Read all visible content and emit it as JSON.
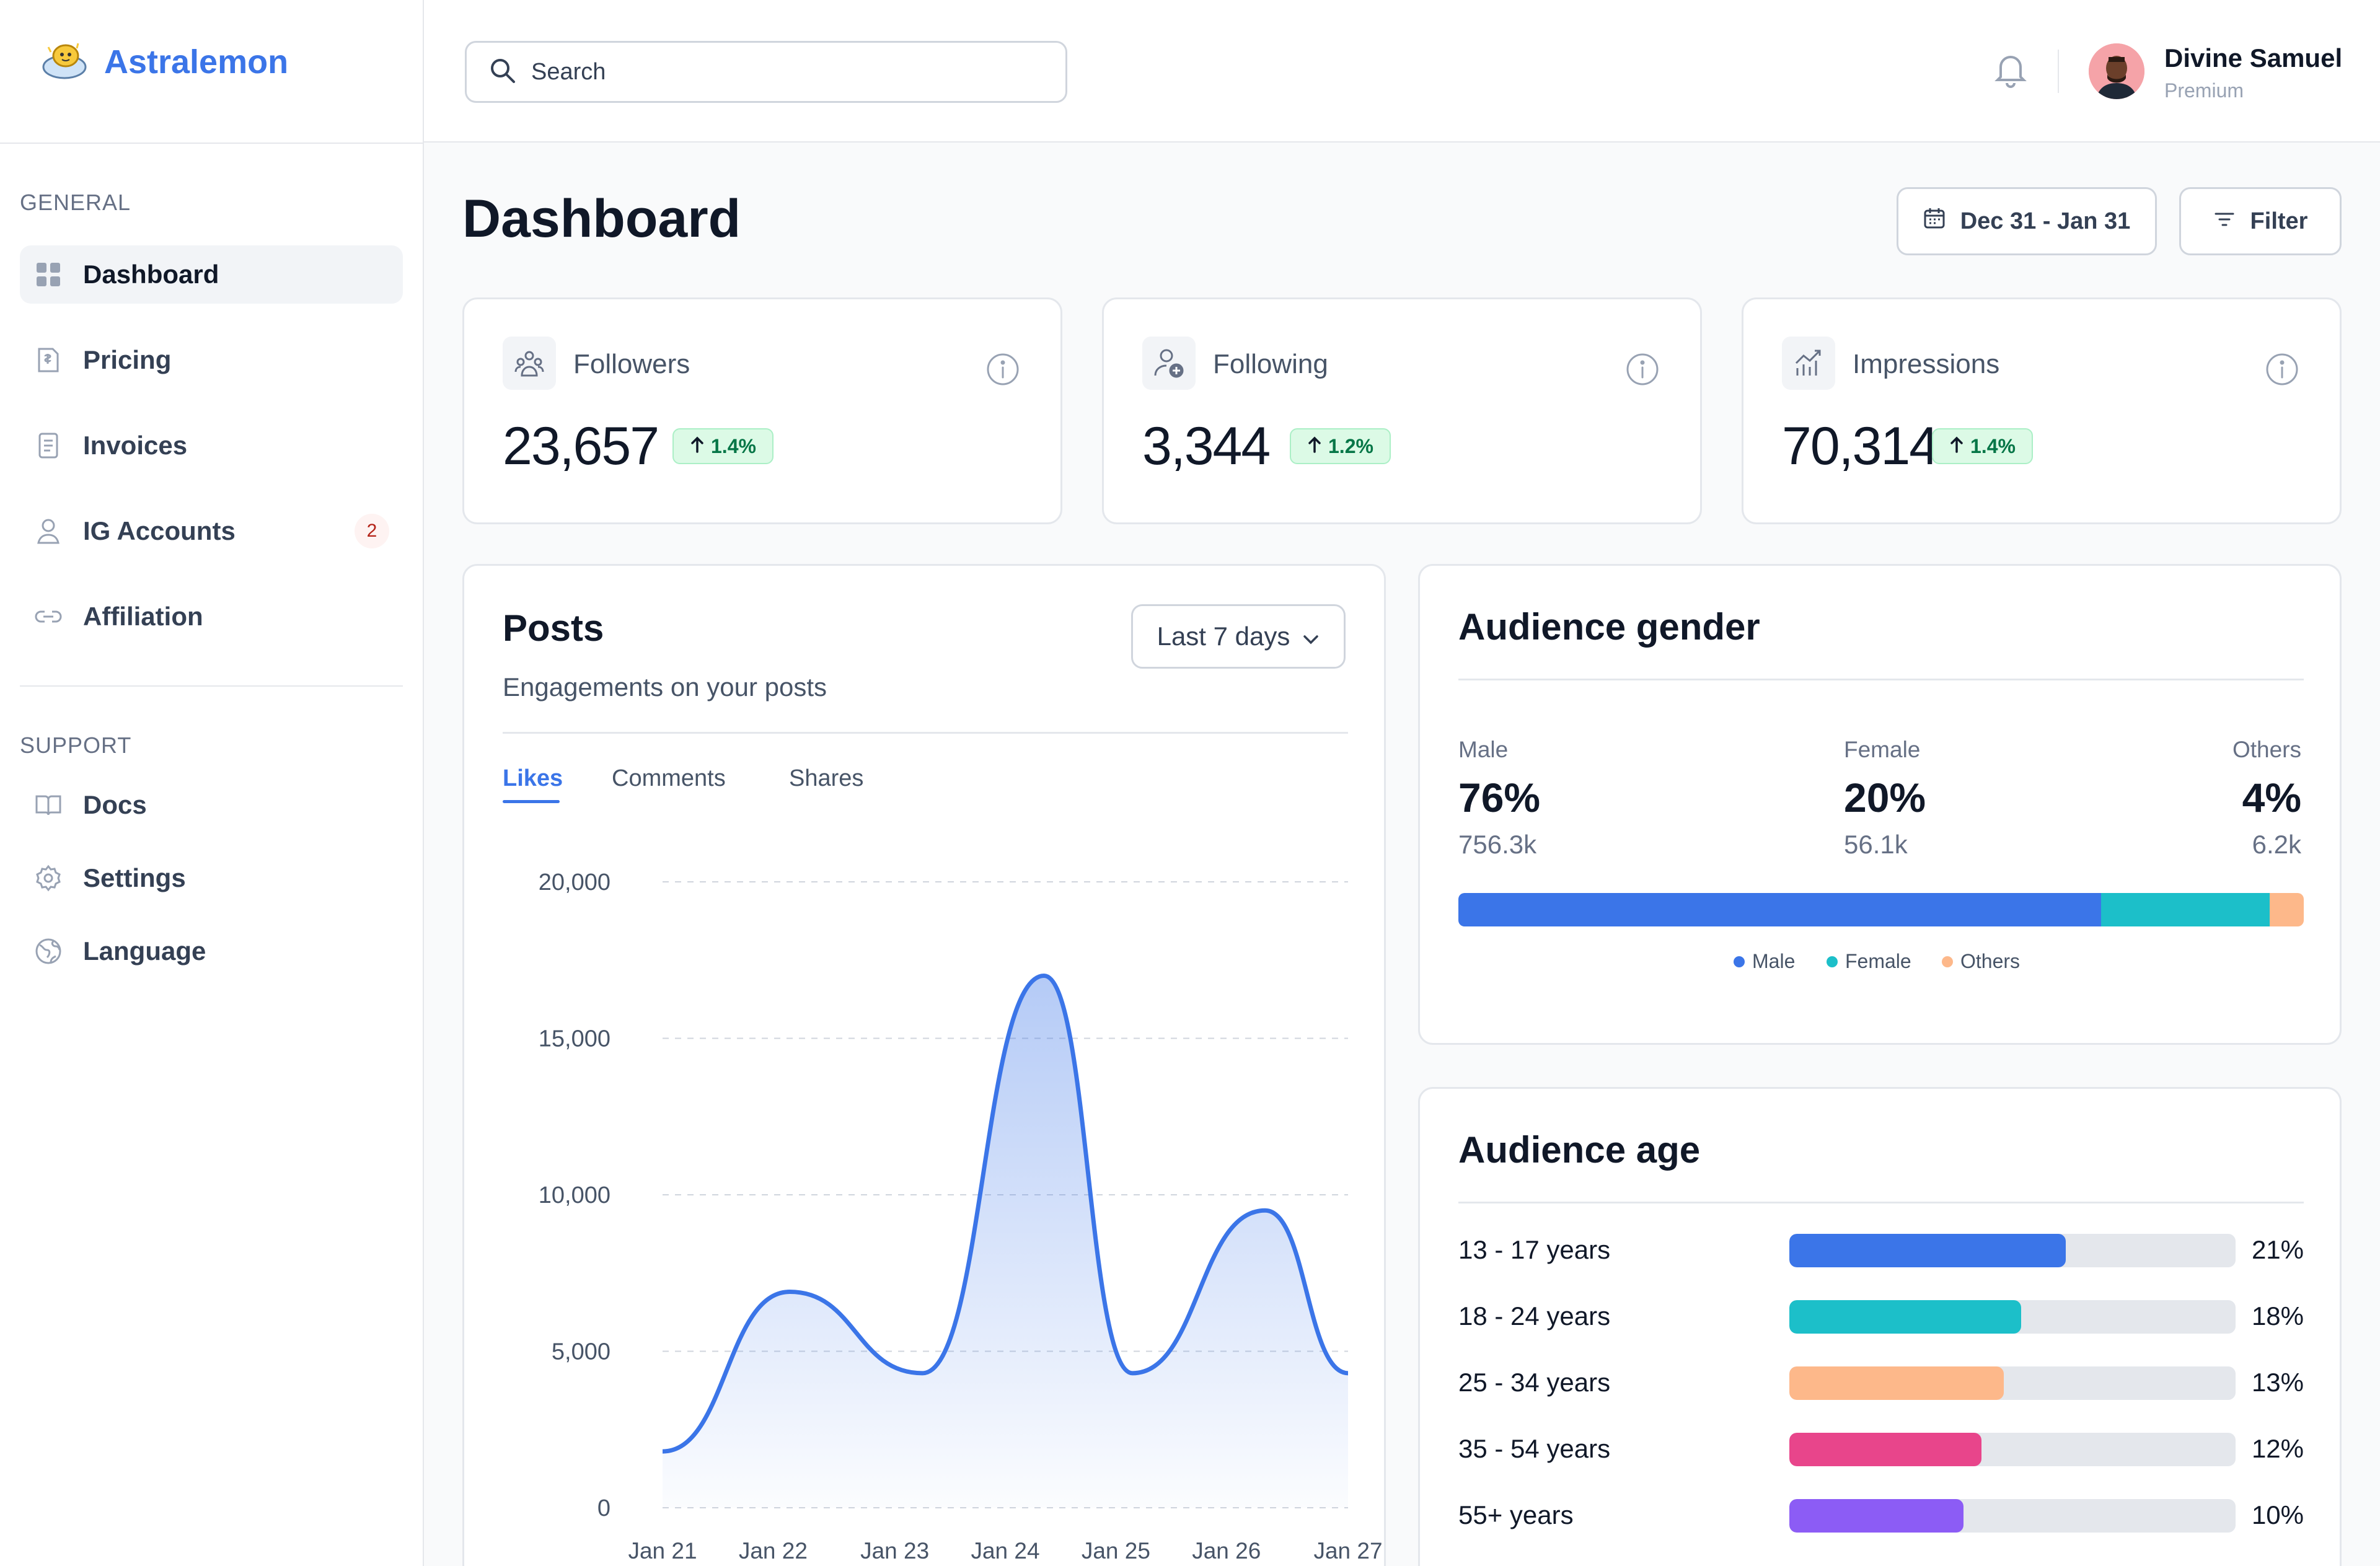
{
  "brand": {
    "name": "Astralemon",
    "logo_icon": "lemon-cloud-logo"
  },
  "search": {
    "placeholder": "Search"
  },
  "user": {
    "name": "Divine Samuel",
    "plan": "Premium"
  },
  "sidebar": {
    "general_label": "GENERAL",
    "support_label": "SUPPORT",
    "items": [
      {
        "label": "Dashboard",
        "icon": "grid-icon",
        "active": true
      },
      {
        "label": "Pricing",
        "icon": "price-tag-icon"
      },
      {
        "label": "Invoices",
        "icon": "receipt-icon"
      },
      {
        "label": "IG Accounts",
        "icon": "user-icon",
        "badge": "2"
      },
      {
        "label": "Affiliation",
        "icon": "link-icon"
      }
    ],
    "support_items": [
      {
        "label": "Docs",
        "icon": "book-icon"
      },
      {
        "label": "Settings",
        "icon": "gear-icon"
      },
      {
        "label": "Language",
        "icon": "globe-icon"
      }
    ]
  },
  "page": {
    "title": "Dashboard",
    "date_range": "Dec 31 - Jan 31",
    "filter_label": "Filter"
  },
  "stats": [
    {
      "label": "Followers",
      "value": "23,657",
      "delta": "1.4%",
      "icon": "followers-icon"
    },
    {
      "label": "Following",
      "value": "3,344",
      "delta": "1.2%",
      "icon": "user-add-icon"
    },
    {
      "label": "Impressions",
      "value": "70,314",
      "delta": "1.4%",
      "icon": "trend-chart-icon"
    }
  ],
  "posts": {
    "title": "Posts",
    "subtitle": "Engagements on your posts",
    "range": "Last 7 days",
    "tabs": [
      "Likes",
      "Comments",
      "Shares"
    ],
    "active_tab": "Likes"
  },
  "chart_data": {
    "type": "area",
    "x": [
      "Jan 21",
      "Jan 22",
      "Jan 23",
      "Jan 24",
      "Jan 25",
      "Jan 26",
      "Jan 27"
    ],
    "x_positions": [
      0,
      1,
      2.1,
      3.1,
      4.1,
      5.1,
      6.2
    ],
    "points": [
      {
        "x": 0,
        "y": 1800
      },
      {
        "x": 1.15,
        "y": 6900
      },
      {
        "x": 2.35,
        "y": 4300
      },
      {
        "x": 3.45,
        "y": 17000
      },
      {
        "x": 4.25,
        "y": 4300
      },
      {
        "x": 5.45,
        "y": 9500
      },
      {
        "x": 6.2,
        "y": 4300
      }
    ],
    "yticks": [
      0,
      5000,
      10000,
      15000,
      20000
    ],
    "ytick_labels": [
      "0",
      "5,000",
      "10,000",
      "15,000",
      "20,000"
    ],
    "ylim": [
      0,
      20000
    ],
    "xlim": [
      0,
      6.2
    ],
    "grid": true,
    "color": "#3b75e8"
  },
  "gender": {
    "title": "Audience gender",
    "male": {
      "label": "Male",
      "pct": "76%",
      "count": "756.3k",
      "share": 0.76,
      "color": "#3b75e8"
    },
    "female": {
      "label": "Female",
      "pct": "20%",
      "count": "56.1k",
      "share": 0.2,
      "color": "#1cbfc9"
    },
    "others": {
      "label": "Others",
      "pct": "4%",
      "count": "6.2k",
      "share": 0.04,
      "color": "#fdb88a"
    }
  },
  "age": {
    "title": "Audience age",
    "rows": [
      {
        "label": "13 - 17 years",
        "pct": "21%",
        "share": 0.62,
        "color": "#3b75e8"
      },
      {
        "label": "18 - 24 years",
        "pct": "18%",
        "share": 0.52,
        "color": "#1cbfc9"
      },
      {
        "label": "25 - 34 years",
        "pct": "13%",
        "share": 0.48,
        "color": "#fdb88a"
      },
      {
        "label": "35 - 54 years",
        "pct": "12%",
        "share": 0.43,
        "color": "#e8458b"
      },
      {
        "label": "55+ years",
        "pct": "10%",
        "share": 0.39,
        "color": "#8c5cf5"
      }
    ]
  }
}
